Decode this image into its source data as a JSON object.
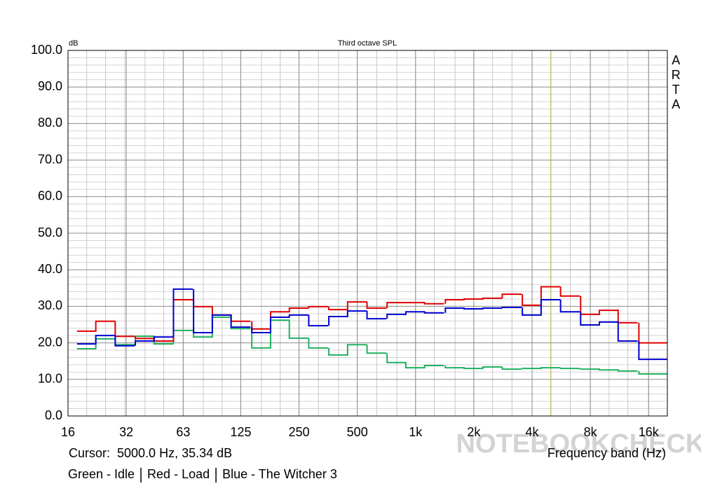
{
  "chart_data": {
    "type": "step",
    "title": "Third octave SPL",
    "y_unit": "dB",
    "x_label": "Frequency band (Hz)",
    "brand": "ARTA",
    "watermark": "NOTEBOOKCHECK",
    "cursor": {
      "x": 5000,
      "label": "Cursor:  5000.0 Hz, 35.34 dB",
      "color": "#b8b040"
    },
    "log_x": true,
    "grid": true,
    "x": [
      20,
      25,
      31.5,
      40,
      50,
      63,
      80,
      100,
      125,
      160,
      200,
      250,
      315,
      400,
      500,
      630,
      800,
      1000,
      1250,
      1600,
      2000,
      2500,
      3150,
      4000,
      5000,
      6300,
      8000,
      10000,
      12500,
      16000,
      20000
    ],
    "series": [
      {
        "name": "Green - Idle",
        "color": "#20b060",
        "values": [
          18.4,
          21.1,
          19.5,
          21.8,
          19.7,
          23.4,
          21.6,
          27.0,
          23.9,
          18.6,
          26.2,
          21.3,
          18.6,
          16.7,
          19.5,
          17.2,
          14.6,
          13.2,
          13.8,
          13.2,
          13.0,
          13.4,
          12.8,
          13.0,
          13.2,
          13.0,
          12.8,
          12.6,
          12.3,
          11.5,
          11.5
        ]
      },
      {
        "name": "Red - Load",
        "color": "#e00000",
        "values": [
          23.2,
          25.9,
          21.8,
          21.2,
          20.5,
          31.8,
          29.9,
          27.6,
          25.9,
          23.8,
          28.5,
          29.5,
          29.9,
          29.1,
          31.2,
          29.5,
          31.0,
          31.0,
          30.7,
          31.8,
          32.0,
          32.2,
          33.3,
          30.3,
          35.34,
          32.8,
          27.8,
          28.9,
          25.5,
          20.0,
          20.0
        ]
      },
      {
        "name": "Blue - The Witcher 3",
        "color": "#0000d0",
        "values": [
          19.7,
          22.0,
          19.2,
          20.5,
          21.6,
          34.7,
          22.8,
          27.6,
          24.3,
          22.8,
          27.0,
          27.6,
          24.7,
          27.2,
          28.7,
          26.6,
          27.8,
          28.5,
          28.2,
          29.5,
          29.3,
          29.5,
          29.7,
          27.6,
          31.8,
          28.5,
          24.9,
          25.7,
          20.5,
          15.5,
          15.5
        ]
      }
    ],
    "xlim": [
      16,
      20000
    ],
    "xticks": [
      16,
      32,
      63,
      125,
      250,
      500,
      {
        "value": 1000,
        "label": "1k"
      },
      {
        "value": 2000,
        "label": "2k"
      },
      {
        "value": 4000,
        "label": "4k"
      },
      {
        "value": 8000,
        "label": "8k"
      },
      {
        "value": 16000,
        "label": "16k"
      }
    ],
    "ylim": [
      0,
      100
    ],
    "yticks": [
      {
        "value": 0,
        "label": "0.0"
      },
      {
        "value": 10,
        "label": "10.0"
      },
      {
        "value": 20,
        "label": "20.0"
      },
      {
        "value": 30,
        "label": "30.0"
      },
      {
        "value": 40,
        "label": "40.0"
      },
      {
        "value": 50,
        "label": "50.0"
      },
      {
        "value": 60,
        "label": "60.0"
      },
      {
        "value": 70,
        "label": "70.0"
      },
      {
        "value": 80,
        "label": "80.0"
      },
      {
        "value": 90,
        "label": "90.0"
      },
      {
        "value": 100,
        "label": "100.0"
      }
    ],
    "yminorticks": [
      2,
      4,
      6,
      8,
      12,
      14,
      16,
      18,
      22,
      24,
      26,
      28,
      32,
      34,
      36,
      38,
      42,
      44,
      46,
      48,
      52,
      54,
      56,
      58,
      62,
      64,
      66,
      68,
      72,
      74,
      76,
      78,
      82,
      84,
      86,
      88,
      92,
      94,
      96,
      98
    ]
  }
}
